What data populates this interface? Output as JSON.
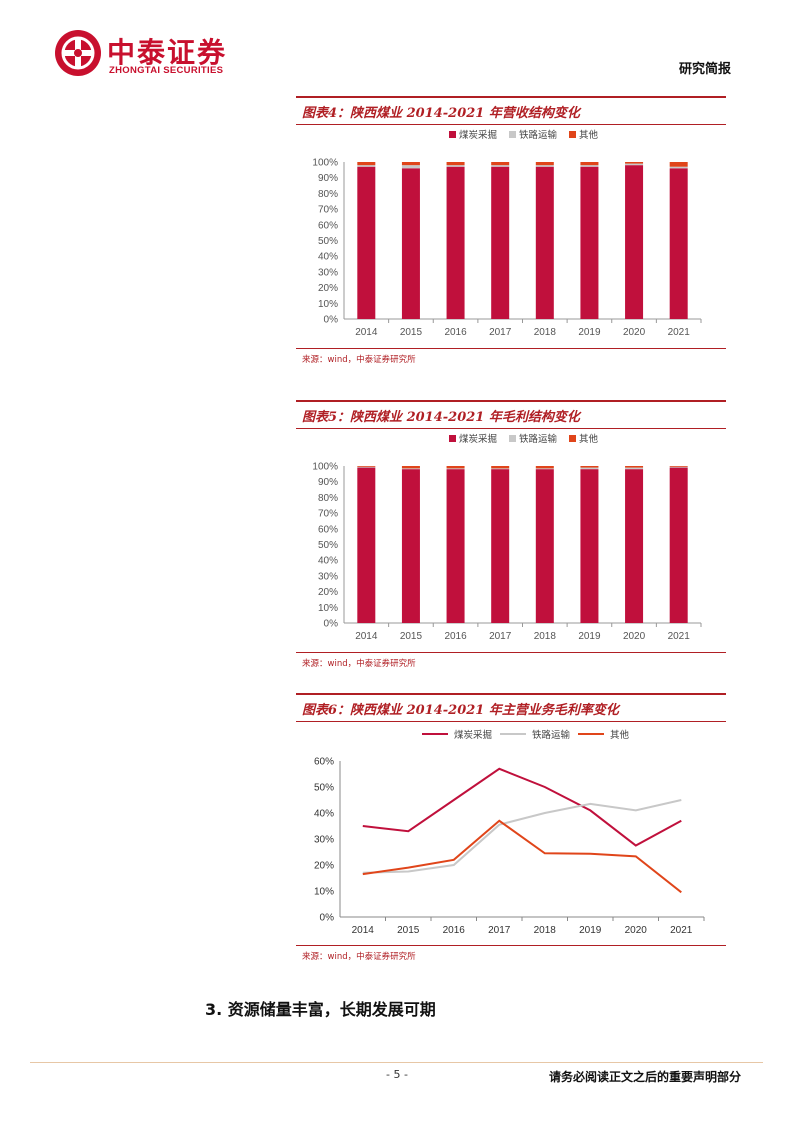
{
  "header": {
    "logo_cn": "中泰证券",
    "logo_en": "ZHONGTAI SECURITIES",
    "report_type": "研究简报"
  },
  "figures": [
    {
      "title": "图表4：陕西煤业 2014-2021 年营收结构变化",
      "source": "来源：wind，中泰证券研究所"
    },
    {
      "title": "图表5：陕西煤业 2014-2021 年毛利结构变化",
      "source": "来源：wind，中泰证券研究所"
    },
    {
      "title": "图表6：陕西煤业 2014-2021 年主营业务毛利率变化",
      "source": "来源：wind，中泰证券研究所"
    }
  ],
  "section_heading": "3. 资源储量丰富，长期发展可期",
  "footer": {
    "page_number": "- 5 -",
    "disclaimer": "请务必阅读正文之后的重要声明部分"
  },
  "colors": {
    "coal": "#c0103c",
    "rail": "#c8c8c8",
    "other": "#e0451a"
  },
  "chart_data": [
    {
      "type": "bar",
      "stacked": true,
      "categories": [
        "2014",
        "2015",
        "2016",
        "2017",
        "2018",
        "2019",
        "2020",
        "2021"
      ],
      "series": [
        {
          "name": "煤炭采掘",
          "values": [
            97,
            96,
            97,
            97,
            97,
            97,
            98,
            96
          ]
        },
        {
          "name": "铁路运输",
          "values": [
            1,
            2,
            1,
            1,
            1,
            1,
            1,
            1
          ]
        },
        {
          "name": "其他",
          "values": [
            2,
            2,
            2,
            2,
            2,
            2,
            1,
            3
          ]
        }
      ],
      "y_ticks": [
        "0%",
        "10%",
        "20%",
        "30%",
        "40%",
        "50%",
        "60%",
        "70%",
        "80%",
        "90%",
        "100%"
      ],
      "ylim": [
        0,
        100
      ],
      "legend_position": "top"
    },
    {
      "type": "bar",
      "stacked": true,
      "categories": [
        "2014",
        "2015",
        "2016",
        "2017",
        "2018",
        "2019",
        "2020",
        "2021"
      ],
      "series": [
        {
          "name": "煤炭采掘",
          "values": [
            99,
            98,
            98,
            98,
            98,
            98,
            98,
            99
          ]
        },
        {
          "name": "铁路运输",
          "values": [
            0.5,
            0.5,
            0.5,
            0.5,
            0.5,
            1,
            1,
            0.5
          ]
        },
        {
          "name": "其他",
          "values": [
            0.5,
            1.5,
            1.5,
            1.5,
            1.5,
            1,
            1,
            0.5
          ]
        }
      ],
      "y_ticks": [
        "0%",
        "10%",
        "20%",
        "30%",
        "40%",
        "50%",
        "60%",
        "70%",
        "80%",
        "90%",
        "100%"
      ],
      "ylim": [
        0,
        100
      ],
      "legend_position": "top"
    },
    {
      "type": "line",
      "categories": [
        "2014",
        "2015",
        "2016",
        "2017",
        "2018",
        "2019",
        "2020",
        "2021"
      ],
      "series": [
        {
          "name": "煤炭采掘",
          "values": [
            35,
            33,
            45,
            57,
            50,
            41,
            27.5,
            37
          ]
        },
        {
          "name": "铁路运输",
          "values": [
            17,
            17.5,
            20,
            35.5,
            40,
            43.5,
            41,
            45
          ]
        },
        {
          "name": "其他",
          "values": [
            16.5,
            19,
            22,
            37,
            24.5,
            24.3,
            23.3,
            9.5
          ]
        }
      ],
      "y_ticks": [
        "0%",
        "10%",
        "20%",
        "30%",
        "40%",
        "50%",
        "60%"
      ],
      "ylim": [
        0,
        60
      ],
      "legend_position": "top"
    }
  ]
}
